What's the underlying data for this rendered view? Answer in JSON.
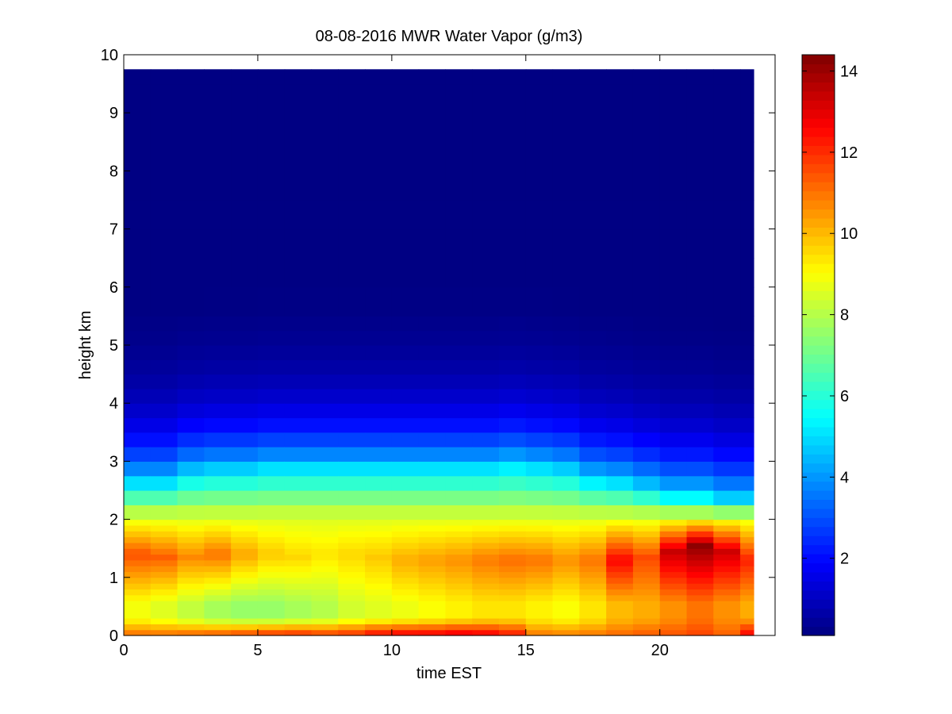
{
  "chart_data": {
    "type": "heatmap",
    "title": "08-08-2016 MWR Water Vapor (g/m3)",
    "xlabel": "time EST",
    "ylabel": "height km",
    "xlim": [
      0,
      24.3
    ],
    "ylim": [
      0,
      10
    ],
    "x_ticks": [
      "0",
      "5",
      "10",
      "15",
      "20"
    ],
    "y_ticks": [
      "0",
      "1",
      "2",
      "3",
      "4",
      "5",
      "6",
      "7",
      "8",
      "9",
      "10"
    ],
    "colorbar": {
      "colormap": "jet",
      "range": [
        0.1,
        14.4
      ],
      "ticks": [
        "2",
        "4",
        "6",
        "8",
        "10",
        "12",
        "14"
      ]
    },
    "x_edges": [
      0,
      1,
      2,
      3,
      4,
      5,
      6,
      7,
      8,
      9,
      10,
      11,
      12,
      13,
      14,
      15,
      16,
      17,
      18,
      19,
      20,
      21,
      22,
      23,
      23.5
    ],
    "y_edges": [
      0,
      0.1,
      0.2,
      0.3,
      0.4,
      0.5,
      0.6,
      0.7,
      0.8,
      0.9,
      1.0,
      1.1,
      1.2,
      1.3,
      1.4,
      1.5,
      1.6,
      1.7,
      1.8,
      1.9,
      2.0,
      2.25,
      2.5,
      2.75,
      3.0,
      3.25,
      3.5,
      3.75,
      4.0,
      4.25,
      4.5,
      4.75,
      5.0,
      5.25,
      5.5,
      6.0,
      6.5,
      7.0,
      7.5,
      8.0,
      8.5,
      9.0,
      9.5,
      9.75
    ],
    "profiles": {
      "column_peak_height_km": [
        1.4,
        1.35,
        1.35,
        1.4,
        1.4,
        1.4,
        1.35,
        1.4,
        1.4,
        1.35,
        1.3,
        1.3,
        1.3,
        1.3,
        1.3,
        1.3,
        1.3,
        1.3,
        1.3,
        1.35,
        1.45,
        1.55,
        1.45,
        1.3
      ],
      "column_peak_value": [
        11.5,
        11.3,
        10.7,
        11.0,
        10.3,
        9.8,
        9.6,
        9.4,
        9.6,
        9.8,
        10.2,
        10.4,
        10.6,
        10.9,
        11.1,
        11.0,
        10.6,
        11.0,
        12.6,
        11.6,
        13.4,
        14.2,
        13.3,
        12.2
      ],
      "column_surface_value": [
        11.2,
        11.2,
        11.4,
        11.6,
        11.9,
        12.2,
        12.3,
        12.0,
        12.2,
        12.8,
        13.0,
        13.0,
        13.2,
        13.0,
        12.5,
        11.0,
        10.9,
        11.0,
        11.2,
        11.4,
        11.5,
        11.7,
        11.3,
        12.8
      ],
      "column_low_minimum": [
        8.9,
        8.6,
        8.2,
        7.8,
        7.6,
        7.6,
        7.8,
        8.0,
        8.4,
        8.6,
        8.8,
        9.0,
        9.2,
        9.4,
        9.4,
        9.2,
        9.0,
        9.4,
        10.0,
        10.2,
        10.6,
        11.0,
        10.6,
        10.2
      ],
      "column_moist_top_km": [
        2.6,
        2.6,
        2.75,
        2.8,
        2.8,
        2.85,
        2.85,
        2.85,
        2.85,
        2.85,
        2.85,
        2.85,
        2.85,
        2.85,
        2.9,
        2.85,
        2.8,
        2.65,
        2.6,
        2.5,
        2.4,
        2.4,
        2.3,
        2.3
      ]
    }
  }
}
